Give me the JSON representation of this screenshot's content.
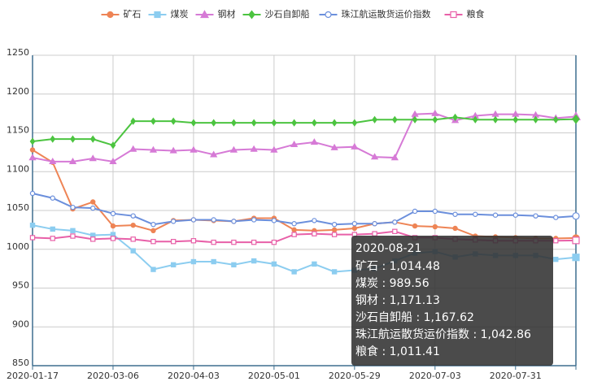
{
  "chart_data": {
    "type": "line",
    "categories": [
      "2020-01-17",
      null,
      null,
      null,
      "2020-03-06",
      null,
      null,
      null,
      "2020-04-03",
      null,
      null,
      null,
      "2020-05-01",
      null,
      null,
      null,
      "2020-05-29",
      null,
      null,
      null,
      "2020-07-03",
      null,
      null,
      null,
      "2020-07-31",
      null,
      null,
      "2020-08-21"
    ],
    "ylim": [
      850,
      1250
    ],
    "yticks": [
      850,
      900,
      950,
      1000,
      1050,
      1100,
      1150,
      1200,
      1250
    ],
    "grid": true,
    "legend": "top",
    "series": [
      {
        "name": "矿石",
        "color": "#ee8455",
        "marker": "circle",
        "values": [
          1128,
          1112,
          1052,
          1061,
          1030,
          1031,
          1024,
          1037,
          1038,
          1037,
          1036,
          1040,
          1040,
          1025,
          1024,
          1025,
          1027,
          1033,
          1035,
          1030,
          1029,
          1027,
          1017,
          1016,
          1015,
          1014,
          1014,
          1014.48
        ],
        "tooltip_label": "1,014.48"
      },
      {
        "name": "煤炭",
        "color": "#8ccdf0",
        "marker": "square",
        "values": [
          1031,
          1026,
          1024,
          1018,
          1019,
          998,
          974,
          980,
          984,
          984,
          980,
          985,
          981,
          971,
          981,
          971,
          973,
          975,
          985,
          995,
          997,
          990,
          994,
          992,
          992,
          992,
          987,
          989.56
        ],
        "tooltip_label": "989.56"
      },
      {
        "name": "钢材",
        "color": "#d67ad6",
        "marker": "triangle",
        "values": [
          1118,
          1113,
          1113,
          1117,
          1113,
          1129,
          1128,
          1127,
          1128,
          1122,
          1128,
          1129,
          1128,
          1135,
          1138,
          1131,
          1132,
          1119,
          1118,
          1174,
          1175,
          1166,
          1172,
          1174,
          1174,
          1173,
          1169,
          1171.13
        ],
        "tooltip_label": "1,171.13"
      },
      {
        "name": "沙石自卸船",
        "color": "#4cc440",
        "marker": "diamond",
        "values": [
          1139,
          1142,
          1142,
          1142,
          1134,
          1165,
          1165,
          1165,
          1163,
          1163,
          1163,
          1163,
          1163,
          1163,
          1163,
          1163,
          1163,
          1167,
          1167,
          1167,
          1167,
          1170,
          1167,
          1167,
          1167,
          1167,
          1167,
          1167.62
        ],
        "tooltip_label": "1,167.62"
      },
      {
        "name": "珠江航运散货运价指数",
        "color": "#6b8fdc",
        "marker": "empty-circle",
        "values": [
          1072,
          1066,
          1054,
          1053,
          1046,
          1043,
          1032,
          1036,
          1038,
          1038,
          1036,
          1038,
          1037,
          1033,
          1037,
          1032,
          1033,
          1033,
          1035,
          1049,
          1049,
          1045,
          1045,
          1044,
          1044,
          1043,
          1041,
          1042.86
        ],
        "tooltip_label": "1,042.86"
      },
      {
        "name": "粮食",
        "color": "#e860a8",
        "marker": "empty-square",
        "values": [
          1015,
          1014,
          1017,
          1013,
          1014,
          1013,
          1010,
          1010,
          1011,
          1009,
          1009,
          1009,
          1009,
          1019,
          1020,
          1019,
          1019,
          1020,
          1023,
          1015,
          1015,
          1013,
          1012,
          1011,
          1011,
          1011,
          1011,
          1011.41
        ],
        "tooltip_label": "1,011.41"
      }
    ]
  }
}
